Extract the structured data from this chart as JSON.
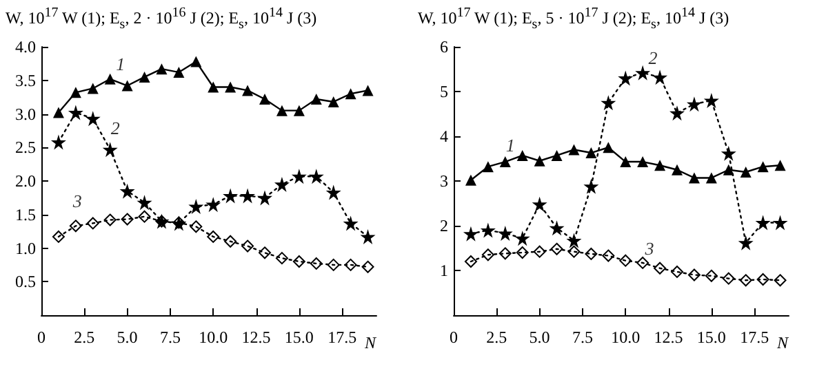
{
  "chart_data": [
    {
      "type": "line",
      "ylabel": "W, 10$^{17}$ W (1); E$_{s}$, 2 · 10$^{16}$ J (2); E$_{s}$, 10$^{14}$ J (3)",
      "xlabel": "N",
      "x": [
        1,
        2,
        3,
        4,
        5,
        6,
        7,
        8,
        9,
        10,
        11,
        12,
        13,
        14,
        15,
        16,
        17,
        18,
        19
      ],
      "series": [
        {
          "color": "#000000",
          "marker": "triangle",
          "line_style": "solid",
          "values": [
            3.02,
            3.32,
            3.38,
            3.52,
            3.42,
            3.55,
            3.67,
            3.62,
            3.78,
            3.4,
            3.4,
            3.35,
            3.22,
            3.05,
            3.05,
            3.22,
            3.18,
            3.3,
            3.35
          ]
        },
        {
          "color": "#000000",
          "marker": "star",
          "line_style": "dotted",
          "values": [
            2.58,
            3.02,
            2.93,
            2.47,
            1.85,
            1.68,
            1.4,
            1.37,
            1.62,
            1.65,
            1.78,
            1.78,
            1.75,
            1.95,
            2.07,
            2.07,
            1.83,
            1.37,
            1.17
          ]
        },
        {
          "color": "#000000",
          "marker": "diamond",
          "line_style": "dotted",
          "values": [
            1.17,
            1.33,
            1.37,
            1.42,
            1.43,
            1.47,
            1.4,
            1.38,
            1.32,
            1.17,
            1.1,
            1.03,
            0.93,
            0.85,
            0.8,
            0.77,
            0.75,
            0.75,
            0.72
          ]
        }
      ],
      "xlim": [
        0,
        19.5
      ],
      "xticks": [
        0,
        2.5,
        {
          "value": 5,
          "label": "5.0"
        },
        7.5,
        {
          "value": 10,
          "label": "10.0"
        },
        12.5,
        {
          "value": 15,
          "label": "15.0"
        },
        17.5
      ],
      "ylim": [
        0,
        4.0
      ],
      "yticks": [
        0.5,
        {
          "value": 1,
          "label": "1.0"
        },
        1.5,
        {
          "value": 2,
          "label": "2.0"
        },
        2.5,
        {
          "value": 3,
          "label": "3.0"
        },
        3.5,
        {
          "value": 4,
          "label": "4.0"
        }
      ],
      "grid": false,
      "annotations": [
        "1",
        "2",
        "3"
      ]
    },
    {
      "type": "line",
      "ylabel": "W, 10$^{17}$ W (1); E$_{s}$, 5 · 10$^{17}$ J (2); E$_{s}$, 10$^{14}$ J (3)",
      "xlabel": "N",
      "x": [
        1,
        2,
        3,
        4,
        5,
        6,
        7,
        8,
        9,
        10,
        11,
        12,
        13,
        14,
        15,
        16,
        17,
        18,
        19
      ],
      "series": [
        {
          "color": "#000000",
          "marker": "triangle",
          "line_style": "solid",
          "values": [
            3.02,
            3.32,
            3.43,
            3.57,
            3.45,
            3.57,
            3.7,
            3.63,
            3.75,
            3.43,
            3.43,
            3.35,
            3.25,
            3.07,
            3.07,
            3.25,
            3.2,
            3.32,
            3.35
          ]
        },
        {
          "color": "#000000",
          "marker": "star",
          "line_style": "dotted",
          "values": [
            1.82,
            1.9,
            1.83,
            1.72,
            2.48,
            1.95,
            1.67,
            2.88,
            4.75,
            5.3,
            5.42,
            5.32,
            4.52,
            4.72,
            4.8,
            3.62,
            1.62,
            2.07,
            2.07
          ]
        },
        {
          "color": "#000000",
          "marker": "diamond",
          "line_style": "dotted",
          "values": [
            1.2,
            1.35,
            1.38,
            1.4,
            1.42,
            1.48,
            1.42,
            1.37,
            1.33,
            1.22,
            1.17,
            1.05,
            0.97,
            0.9,
            0.88,
            0.82,
            0.78,
            0.8,
            0.78
          ]
        }
      ],
      "xlim": [
        0,
        19.5
      ],
      "xticks": [
        0,
        2.5,
        {
          "value": 5,
          "label": "5.0"
        },
        7.5,
        {
          "value": 10,
          "label": "10.0"
        },
        12.5,
        {
          "value": 15,
          "label": "15.0"
        },
        17.5
      ],
      "ylim": [
        0,
        6
      ],
      "yticks": [
        1,
        2,
        3,
        4,
        5,
        6
      ],
      "grid": false,
      "annotations": [
        "1",
        "2",
        "3"
      ]
    }
  ]
}
